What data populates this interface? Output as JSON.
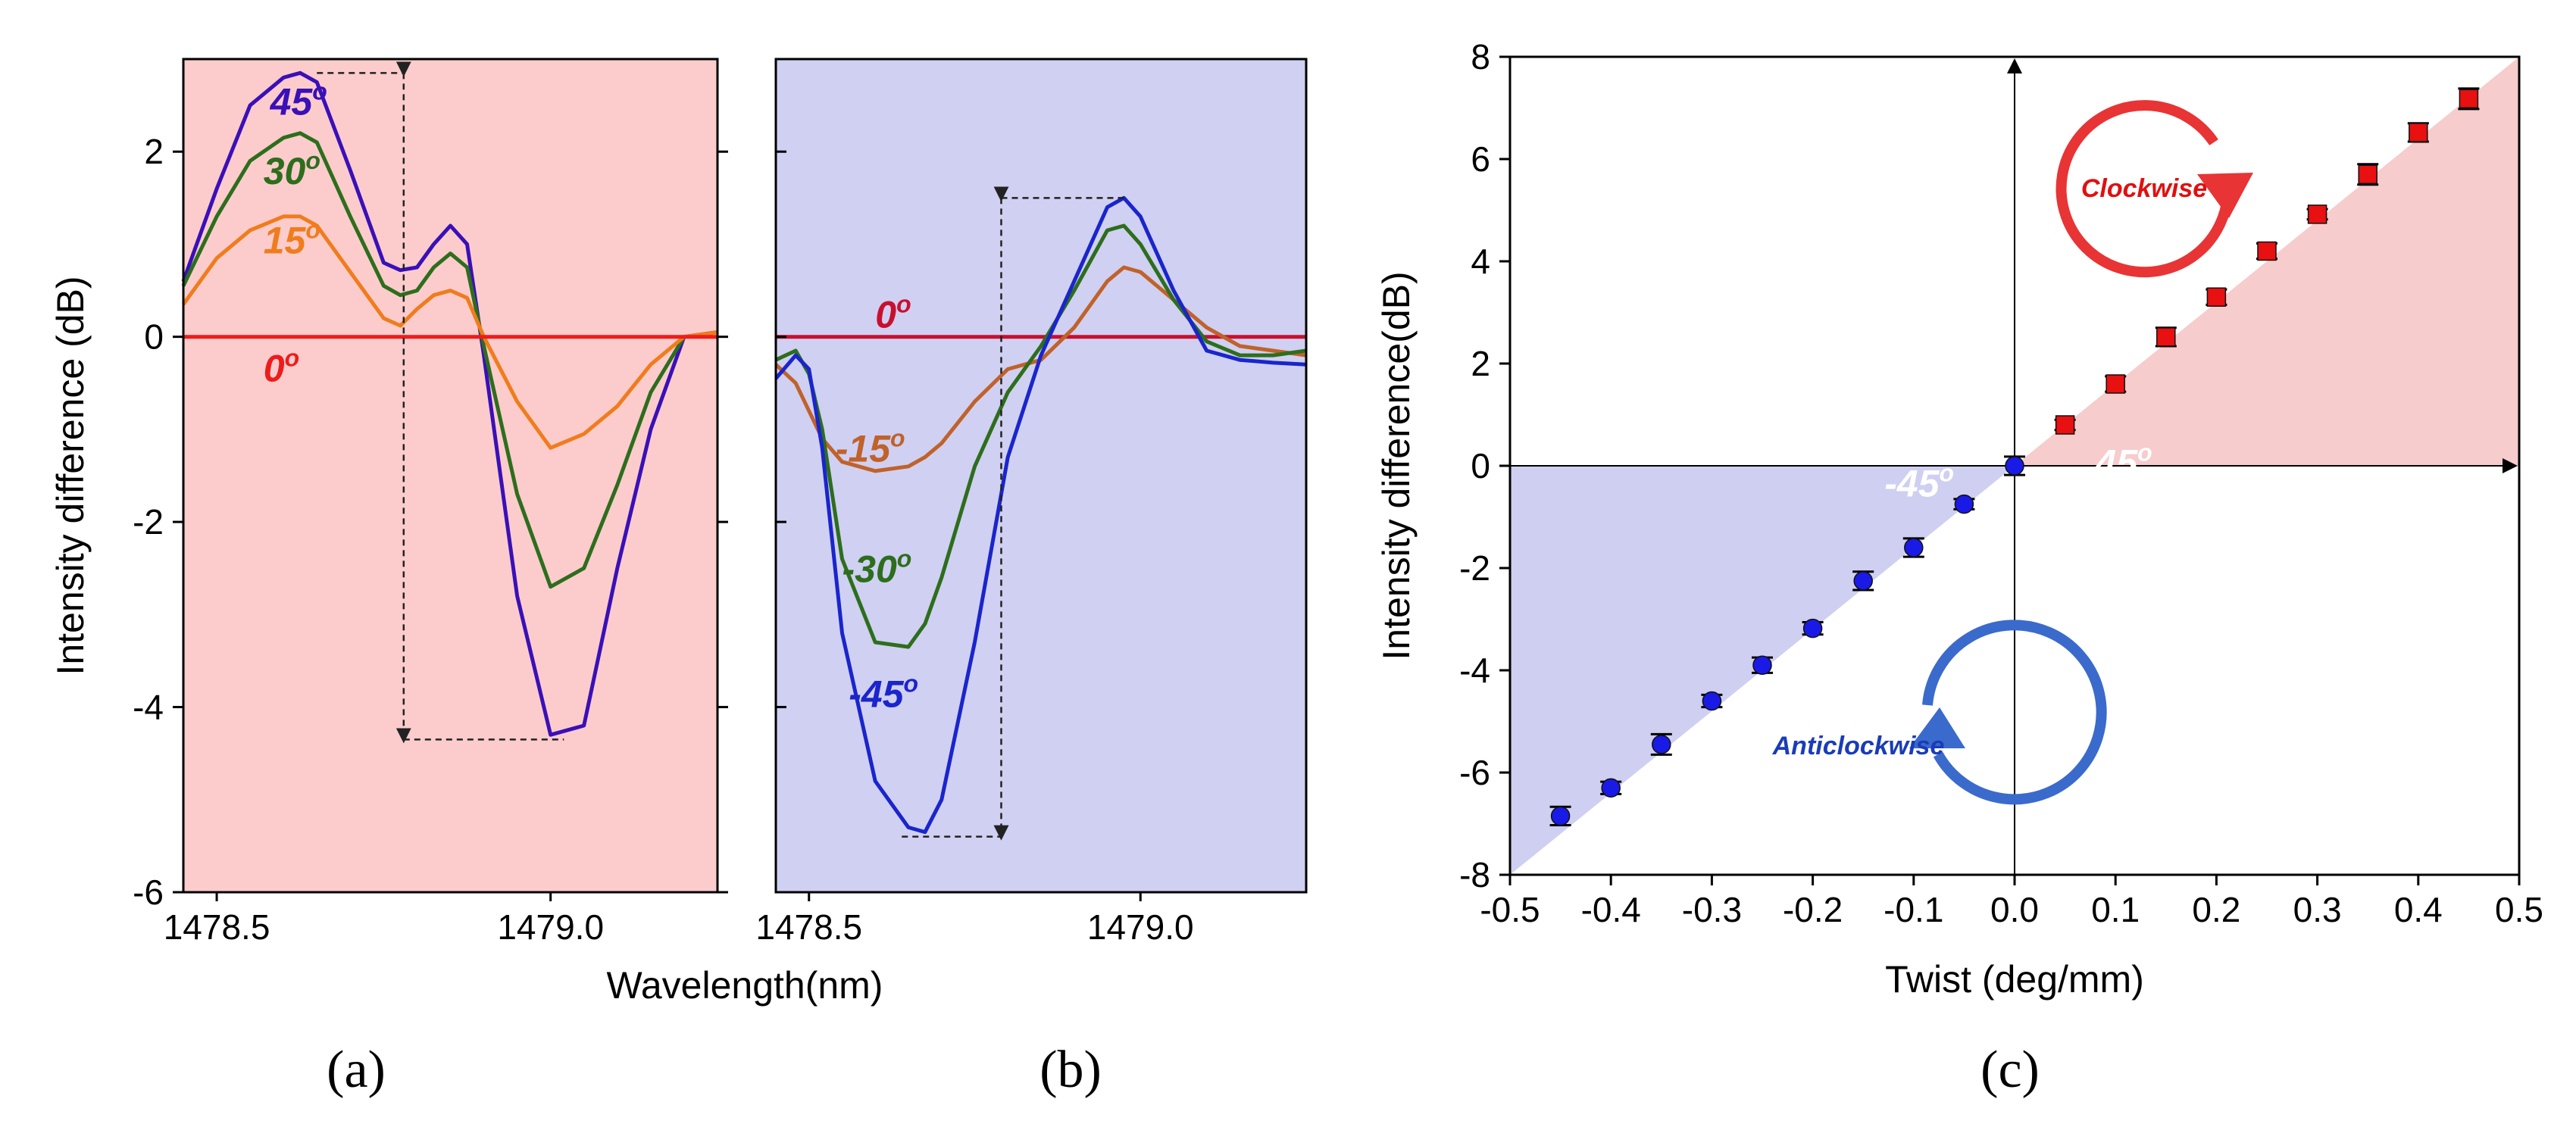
{
  "chart_data": [
    {
      "type": "line",
      "panel": "(a)",
      "ylabel": "Intensity difference (dB)",
      "xlim": [
        1478.45,
        1479.25
      ],
      "ylim": [
        -6,
        3
      ],
      "xticks": [
        1478.5,
        1479.0
      ],
      "xtick_labels": [
        "1478.5",
        "1479.0"
      ],
      "yticks": [
        -6,
        -4,
        -2,
        0,
        2
      ],
      "ytick_labels": [
        "-6",
        "-4",
        "-2",
        "0",
        "2"
      ],
      "background": "#fccccc",
      "x": [
        1478.45,
        1478.5,
        1478.55,
        1478.6,
        1478.625,
        1478.65,
        1478.7,
        1478.75,
        1478.775,
        1478.8,
        1478.825,
        1478.85,
        1478.875,
        1478.9,
        1478.95,
        1479.0,
        1479.05,
        1479.1,
        1479.15,
        1479.2,
        1479.25
      ],
      "series": [
        {
          "name": "45°",
          "label": "45",
          "color": "#3a10b8",
          "values": [
            0.6,
            1.6,
            2.5,
            2.8,
            2.85,
            2.75,
            1.8,
            0.8,
            0.72,
            0.75,
            1.0,
            1.2,
            1.0,
            -0.2,
            -2.8,
            -4.3,
            -4.2,
            -2.5,
            -1.0,
            0.0,
            0.05
          ]
        },
        {
          "name": "30°",
          "label": "30",
          "color": "#2d6e1c",
          "values": [
            0.55,
            1.3,
            1.9,
            2.15,
            2.2,
            2.1,
            1.3,
            0.55,
            0.45,
            0.5,
            0.75,
            0.9,
            0.75,
            -0.1,
            -1.7,
            -2.7,
            -2.5,
            -1.6,
            -0.6,
            0.0,
            0.05
          ]
        },
        {
          "name": "15°",
          "label": "15",
          "color": "#f07c1c",
          "values": [
            0.35,
            0.85,
            1.15,
            1.3,
            1.3,
            1.2,
            0.7,
            0.2,
            0.12,
            0.3,
            0.45,
            0.5,
            0.42,
            0.0,
            -0.7,
            -1.2,
            -1.05,
            -0.75,
            -0.3,
            0.0,
            0.05
          ]
        },
        {
          "name": "0°",
          "label": "0",
          "color": "#ee1b1b",
          "values": [
            0,
            0,
            0,
            0,
            0,
            0,
            0,
            0,
            0,
            0,
            0,
            0,
            0,
            0,
            0,
            0,
            0,
            0,
            0,
            0,
            0
          ]
        }
      ],
      "annotation": "double arrow from 2.85 dB to -4.35 dB at 1478.78 nm"
    },
    {
      "type": "line",
      "panel": "(b)",
      "xlabel": "Wavelength(nm)",
      "xlim": [
        1478.45,
        1479.25
      ],
      "ylim": [
        -6,
        3
      ],
      "xticks": [
        1478.5,
        1479.0
      ],
      "xtick_labels": [
        "1478.5",
        "1479.0"
      ],
      "background": "#d0d0f2",
      "x": [
        1478.45,
        1478.48,
        1478.5,
        1478.52,
        1478.55,
        1478.6,
        1478.65,
        1478.675,
        1478.7,
        1478.75,
        1478.8,
        1478.85,
        1478.9,
        1478.95,
        1478.975,
        1479.0,
        1479.05,
        1479.1,
        1479.15,
        1479.2,
        1479.25
      ],
      "series": [
        {
          "name": "0°",
          "label": "0",
          "color": "#c8102e",
          "values": [
            0,
            0,
            0,
            0,
            0,
            0,
            0,
            0,
            0,
            0,
            0,
            0,
            0,
            0,
            0,
            0,
            0,
            0,
            0,
            0,
            0
          ]
        },
        {
          "name": "-15°",
          "label": "-15",
          "color": "#c0622a",
          "values": [
            -0.3,
            -0.5,
            -0.8,
            -1.1,
            -1.35,
            -1.45,
            -1.4,
            -1.3,
            -1.15,
            -0.7,
            -0.35,
            -0.25,
            0.1,
            0.6,
            0.75,
            0.7,
            0.4,
            0.1,
            -0.1,
            -0.15,
            -0.2
          ]
        },
        {
          "name": "-30°",
          "label": "-30",
          "color": "#2d6e1c",
          "values": [
            -0.25,
            -0.15,
            -0.4,
            -1.0,
            -2.4,
            -3.3,
            -3.35,
            -3.1,
            -2.6,
            -1.4,
            -0.6,
            -0.1,
            0.5,
            1.15,
            1.2,
            1.0,
            0.4,
            -0.05,
            -0.2,
            -0.2,
            -0.15
          ]
        },
        {
          "name": "-45°",
          "label": "-45",
          "color": "#1a25cc",
          "values": [
            -0.45,
            -0.2,
            -0.35,
            -1.2,
            -3.2,
            -4.8,
            -5.3,
            -5.35,
            -5.0,
            -3.3,
            -1.3,
            -0.2,
            0.6,
            1.4,
            1.5,
            1.3,
            0.5,
            -0.15,
            -0.25,
            -0.28,
            -0.3
          ]
        }
      ],
      "annotation": "double arrow from 1.5 dB to -5.4 dB at 1478.79 nm"
    },
    {
      "type": "scatter",
      "panel": "(c)",
      "xlabel": "Twist (deg/mm)",
      "ylabel": "Intensity difference(dB)",
      "xlim": [
        -0.5,
        0.5
      ],
      "ylim": [
        -8,
        8
      ],
      "xticks": [
        -0.5,
        -0.4,
        -0.3,
        -0.2,
        -0.1,
        0.0,
        0.1,
        0.2,
        0.3,
        0.4,
        0.5
      ],
      "xtick_labels": [
        "-0.5",
        "-0.4",
        "-0.3",
        "-0.2",
        "-0.1",
        "0.0",
        "0.1",
        "0.2",
        "0.3",
        "0.4",
        "0.5"
      ],
      "yticks": [
        -8,
        -6,
        -4,
        -2,
        0,
        2,
        4,
        6,
        8
      ],
      "ytick_labels": [
        "-8",
        "-6",
        "-4",
        "-2",
        "0",
        "2",
        "4",
        "6",
        "8"
      ],
      "series": [
        {
          "name": "Anticlockwise",
          "color": "#1a1ae6",
          "marker": "circle",
          "x": [
            -0.45,
            -0.4,
            -0.35,
            -0.3,
            -0.25,
            -0.2,
            -0.15,
            -0.1,
            -0.05,
            0.0
          ],
          "values": [
            -6.85,
            -6.3,
            -5.45,
            -4.6,
            -3.9,
            -3.18,
            -2.25,
            -1.6,
            -0.75,
            0.0
          ],
          "errors": [
            0.18,
            0.12,
            0.2,
            0.12,
            0.15,
            0.12,
            0.18,
            0.18,
            0.1,
            0.18
          ]
        },
        {
          "name": "Clockwise",
          "color": "#e81010",
          "marker": "square",
          "x": [
            0.05,
            0.1,
            0.15,
            0.2,
            0.25,
            0.3,
            0.35,
            0.4,
            0.45
          ],
          "values": [
            0.8,
            1.6,
            2.52,
            3.3,
            4.2,
            4.92,
            5.7,
            6.52,
            7.18
          ],
          "errors": [
            0.1,
            0.15,
            0.18,
            0.15,
            0.15,
            0.1,
            0.2,
            0.18,
            0.2
          ]
        }
      ],
      "region_colors": {
        "positive": "#f7cccc",
        "negative": "#cfcff2"
      },
      "annotations": [
        {
          "text": "45",
          "sup": "o"
        },
        {
          "text": "-45",
          "sup": "o"
        },
        {
          "text": "Clockwise"
        },
        {
          "text": "Anticlockwise"
        }
      ]
    }
  ],
  "panel_labels": [
    "(a)",
    "(b)",
    "(c)"
  ],
  "degree_sup": "o"
}
